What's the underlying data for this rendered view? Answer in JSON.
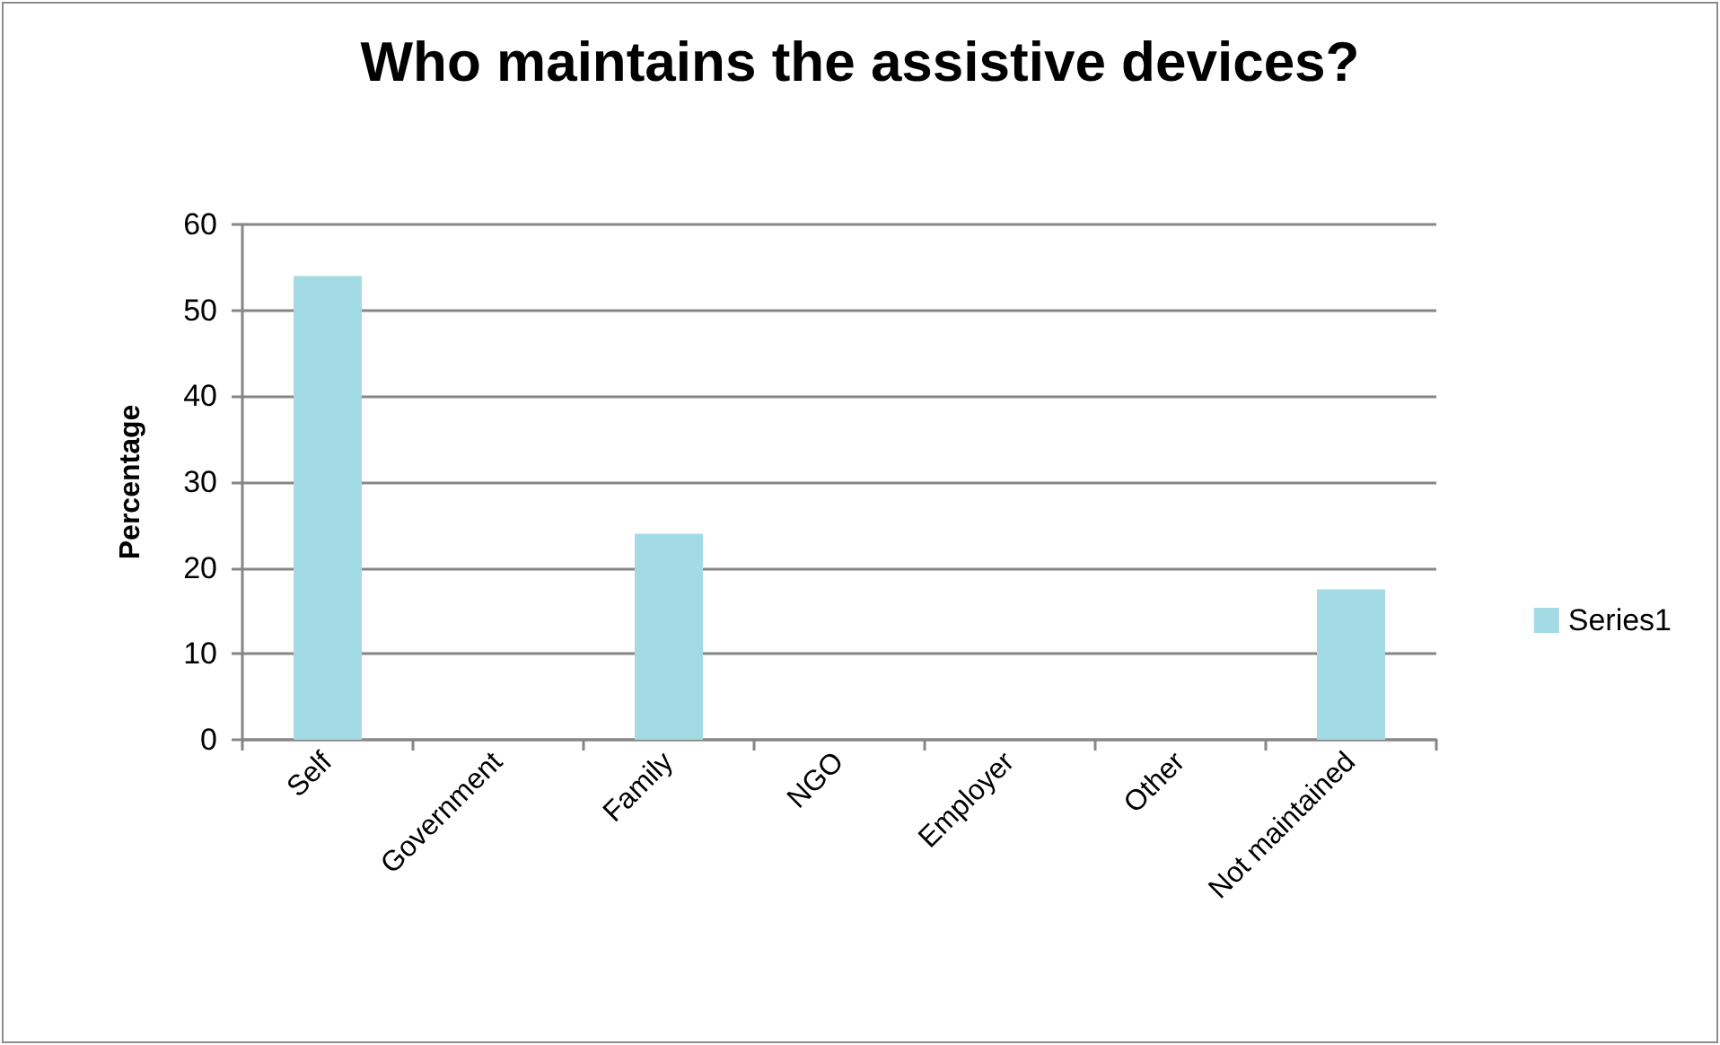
{
  "chart_data": {
    "type": "bar",
    "title": "Who maintains the assistive devices?",
    "ylabel": "Percentage",
    "categories": [
      "Self",
      "Government",
      "Family",
      "NGO",
      "Employer",
      "Other",
      "Not maintained"
    ],
    "series": [
      {
        "name": "Series1",
        "color": "#a3dae4",
        "values": [
          54,
          0,
          24,
          0,
          0,
          0,
          17.5
        ]
      }
    ],
    "ylim": [
      0,
      60
    ],
    "yticks": [
      0,
      10,
      20,
      30,
      40,
      50,
      60
    ],
    "grid": "y",
    "legend": "right"
  }
}
